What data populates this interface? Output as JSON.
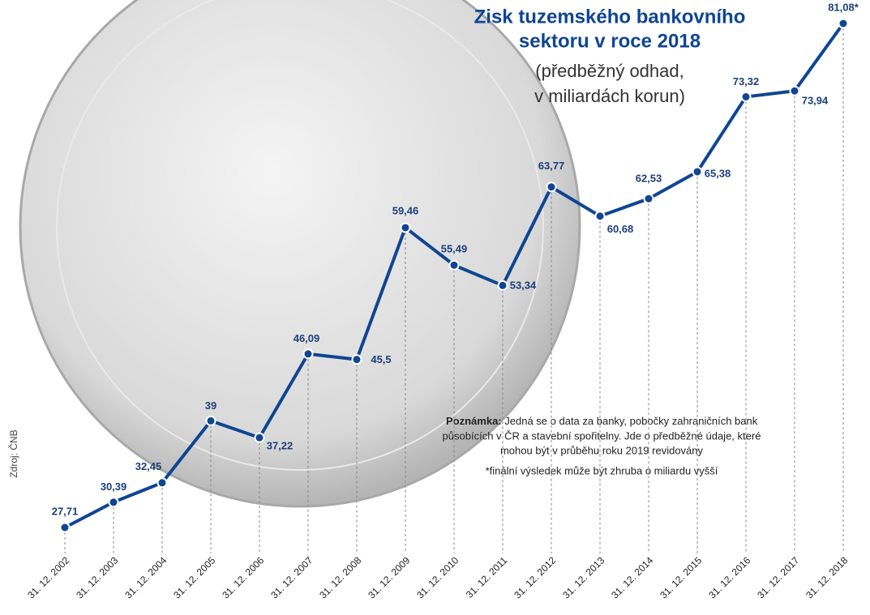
{
  "chart_data": {
    "type": "line",
    "title": [
      "Zisk tuzemského bankovního",
      "sektoru v roce 2018"
    ],
    "subtitle": [
      "(předběžný odhad,",
      "v miliardách korun)"
    ],
    "categories": [
      "31. 12. 2002",
      "31. 12. 2003",
      "31. 12. 2004",
      "31. 12. 2005",
      "31. 12. 2006",
      "31. 12. 2007",
      "31. 12. 2008",
      "31. 12. 2009",
      "31. 12. 2010",
      "31. 12. 2011",
      "31. 12. 2012",
      "31. 12. 2013",
      "31. 12. 2014",
      "31. 12. 2015",
      "31. 12. 2016",
      "31. 12. 2017",
      "31. 12. 2018"
    ],
    "values": [
      27.71,
      30.39,
      32.45,
      39,
      37.22,
      46.09,
      45.5,
      59.46,
      55.49,
      53.34,
      63.77,
      60.68,
      62.53,
      65.38,
      73.32,
      73.94,
      81.08
    ],
    "value_labels": [
      "27,71",
      "30,39",
      "32,45",
      "39",
      "37,22",
      "46,09",
      "45,5",
      "59,46",
      "55,49",
      "53,34",
      "63,77",
      "60,68",
      "62,53",
      "65,38",
      "73,32",
      "73,94",
      "81,08*"
    ],
    "color": "#0f4593",
    "note": {
      "bold": "Poznámka:",
      "text": [
        "Jedná se o data za banky, pobočky zahraničních bank",
        "působících v ČR a stavební spořitelny. Jde o předběžné údaje, které",
        "mohou být v průběhu roku 2019 revidovány"
      ],
      "footnote": "*finální výsledek může být zhruba o miliardu vyšší"
    },
    "source": "Zdroj: ČNB"
  }
}
